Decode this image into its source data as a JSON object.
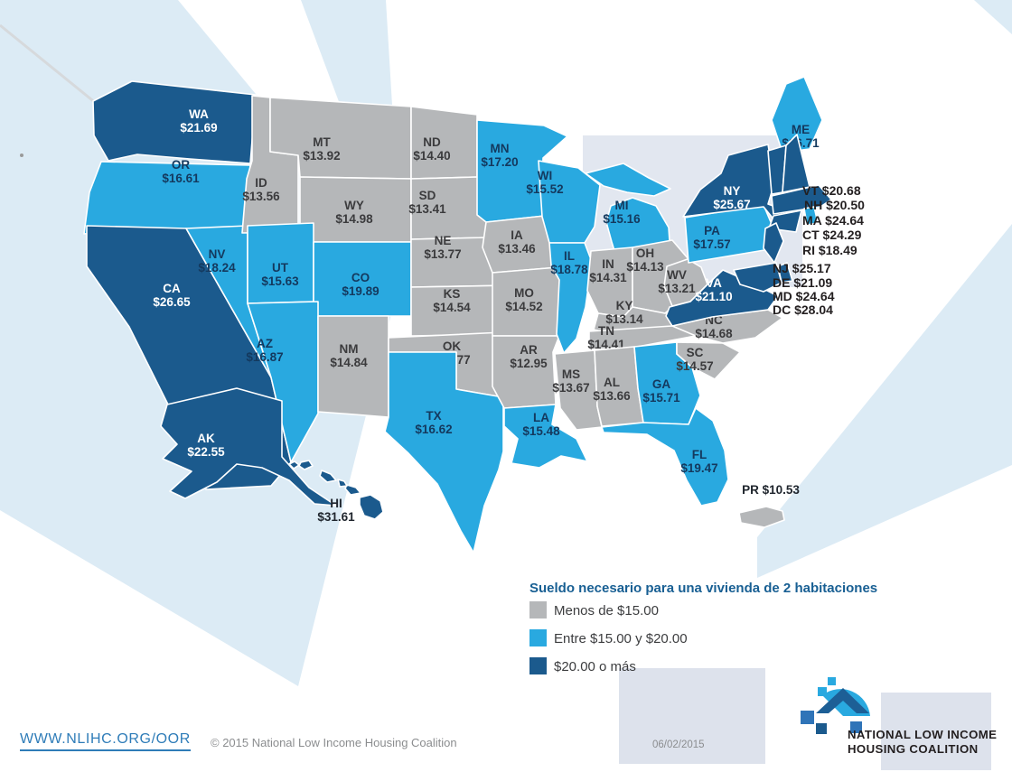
{
  "legend": {
    "title": "Sueldo necesario para una vivienda de 2 habitaciones",
    "items": [
      {
        "key": "low",
        "label": "Menos de $15.00",
        "color": "#b5b7b9"
      },
      {
        "key": "mid",
        "label": "Entre $15.00 y $20.00",
        "color": "#29a9e0"
      },
      {
        "key": "high",
        "label": "$20.00 o más",
        "color": "#1b5a8d"
      }
    ]
  },
  "map": {
    "callout_ne1": [
      "VT $20.68",
      "NH $20.50",
      "MA $24.64",
      "CT $24.29",
      "RI $18.49"
    ],
    "callout_ne2": [
      "NJ $25.17",
      "DE $21.09",
      "MD $24.64",
      "DC $28.04"
    ]
  },
  "chart_data": {
    "type": "choropleth",
    "title": "Sueldo necesario para una vivienda de 2 habitaciones",
    "unit": "USD per hour",
    "categories": [
      {
        "key": "low",
        "label": "Menos de $15.00"
      },
      {
        "key": "mid",
        "label": "Entre $15.00 y $20.00"
      },
      {
        "key": "high",
        "label": "$20.00 o más"
      }
    ],
    "states": [
      {
        "abbr": "WA",
        "value": "$21.69",
        "category": "high"
      },
      {
        "abbr": "OR",
        "value": "$16.61",
        "category": "mid"
      },
      {
        "abbr": "CA",
        "value": "$26.65",
        "category": "high"
      },
      {
        "abbr": "NV",
        "value": "$18.24",
        "category": "mid"
      },
      {
        "abbr": "ID",
        "value": "$13.56",
        "category": "low"
      },
      {
        "abbr": "MT",
        "value": "$13.92",
        "category": "low"
      },
      {
        "abbr": "WY",
        "value": "$14.98",
        "category": "low"
      },
      {
        "abbr": "UT",
        "value": "$15.63",
        "category": "mid"
      },
      {
        "abbr": "CO",
        "value": "$19.89",
        "category": "mid"
      },
      {
        "abbr": "AZ",
        "value": "$16.87",
        "category": "mid"
      },
      {
        "abbr": "NM",
        "value": "$14.84",
        "category": "low"
      },
      {
        "abbr": "ND",
        "value": "$14.40",
        "category": "low"
      },
      {
        "abbr": "SD",
        "value": "$13.41",
        "category": "low"
      },
      {
        "abbr": "NE",
        "value": "$13.77",
        "category": "low"
      },
      {
        "abbr": "KS",
        "value": "$14.54",
        "category": "low"
      },
      {
        "abbr": "OK",
        "value": "$13.77",
        "category": "low"
      },
      {
        "abbr": "TX",
        "value": "$16.62",
        "category": "mid"
      },
      {
        "abbr": "MN",
        "value": "$17.20",
        "category": "mid"
      },
      {
        "abbr": "IA",
        "value": "$13.46",
        "category": "low"
      },
      {
        "abbr": "MO",
        "value": "$14.52",
        "category": "low"
      },
      {
        "abbr": "AR",
        "value": "$12.95",
        "category": "low"
      },
      {
        "abbr": "LA",
        "value": "$15.48",
        "category": "mid"
      },
      {
        "abbr": "WI",
        "value": "$15.52",
        "category": "mid"
      },
      {
        "abbr": "IL",
        "value": "$18.78",
        "category": "mid"
      },
      {
        "abbr": "MI",
        "value": "$15.16",
        "category": "mid"
      },
      {
        "abbr": "IN",
        "value": "$14.31",
        "category": "low"
      },
      {
        "abbr": "OH",
        "value": "$14.13",
        "category": "low"
      },
      {
        "abbr": "KY",
        "value": "$13.14",
        "category": "low"
      },
      {
        "abbr": "TN",
        "value": "$14.41",
        "category": "low"
      },
      {
        "abbr": "MS",
        "value": "$13.67",
        "category": "low"
      },
      {
        "abbr": "AL",
        "value": "$13.66",
        "category": "low"
      },
      {
        "abbr": "GA",
        "value": "$15.71",
        "category": "mid"
      },
      {
        "abbr": "FL",
        "value": "$19.47",
        "category": "mid"
      },
      {
        "abbr": "SC",
        "value": "$14.57",
        "category": "low"
      },
      {
        "abbr": "NC",
        "value": "$14.68",
        "category": "low"
      },
      {
        "abbr": "WV",
        "value": "$13.21",
        "category": "low"
      },
      {
        "abbr": "VA",
        "value": "$21.10",
        "category": "high"
      },
      {
        "abbr": "PA",
        "value": "$17.57",
        "category": "mid"
      },
      {
        "abbr": "NY",
        "value": "$25.67",
        "category": "high"
      },
      {
        "abbr": "ME",
        "value": "$16.71",
        "category": "mid"
      },
      {
        "abbr": "VT",
        "value": "$20.68",
        "category": "high"
      },
      {
        "abbr": "NH",
        "value": "$20.50",
        "category": "high"
      },
      {
        "abbr": "MA",
        "value": "$24.64",
        "category": "high"
      },
      {
        "abbr": "CT",
        "value": "$24.29",
        "category": "high"
      },
      {
        "abbr": "RI",
        "value": "$18.49",
        "category": "mid"
      },
      {
        "abbr": "NJ",
        "value": "$25.17",
        "category": "high"
      },
      {
        "abbr": "DE",
        "value": "$21.09",
        "category": "high"
      },
      {
        "abbr": "MD",
        "value": "$24.64",
        "category": "high"
      },
      {
        "abbr": "DC",
        "value": "$28.04",
        "category": "high"
      },
      {
        "abbr": "AK",
        "value": "$22.55",
        "category": "high"
      },
      {
        "abbr": "HI",
        "value": "$31.61",
        "category": "high"
      },
      {
        "abbr": "PR",
        "value": "$10.53",
        "category": "low"
      }
    ]
  },
  "footer": {
    "link": "WWW.NLIHC.ORG/OOR",
    "copyright": "© 2015 National Low Income Housing Coalition",
    "date": "06/02/2015"
  },
  "logo": {
    "line1": "NATIONAL LOW INCOME",
    "line2": "HOUSING COALITION"
  },
  "colors": {
    "accent_blue": "#185f93",
    "link_blue": "#2e7cb8",
    "muted_text": "#8b8d8f"
  }
}
